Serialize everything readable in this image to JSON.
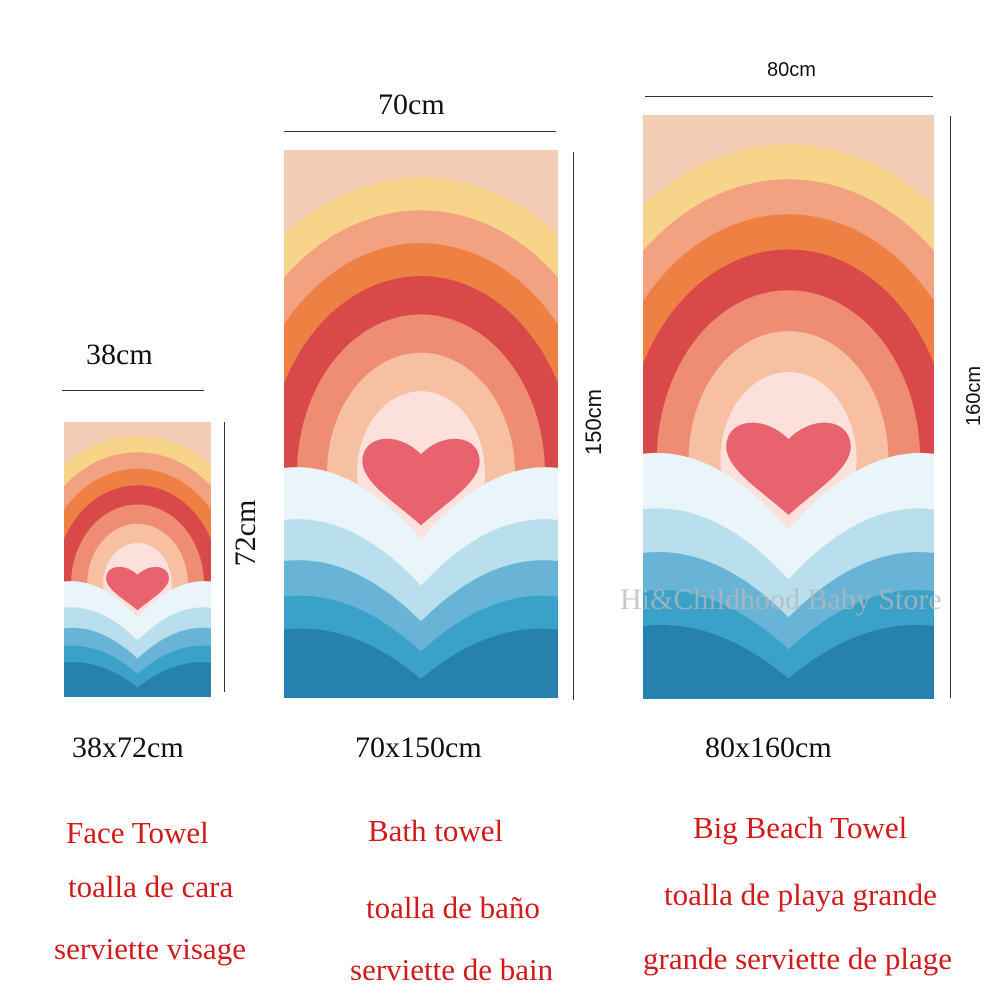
{
  "towels": [
    {
      "width_label": "38cm",
      "height_label": "72cm",
      "size_label": "38x72cm",
      "names": [
        "Face Towel",
        "toalla de cara",
        "serviette visage"
      ]
    },
    {
      "width_label": "70cm",
      "height_label": "150cm",
      "size_label": "70x150cm",
      "names": [
        "Bath towel",
        "toalla de baño",
        "serviette de bain"
      ]
    },
    {
      "width_label": "80cm",
      "height_label": "160cm",
      "size_label": "80x160cm",
      "names": [
        "Big Beach Towel",
        "toalla de playa grande",
        "grande serviette de plage"
      ]
    }
  ],
  "watermark": "Hi&Childhood Baby Store",
  "colors": {
    "name_text": "#d11a1a",
    "rainbow": [
      "#f3cdb5",
      "#f8d48a",
      "#f2a181",
      "#ee8044",
      "#d9494a",
      "#ef8c74",
      "#f7c0a2",
      "#fbe0dc"
    ],
    "heart": "#e8636e",
    "waves": [
      "#e9f5f8",
      "#b8dfeb",
      "#67b4d6",
      "#3aa1c9",
      "#2681ac"
    ]
  }
}
